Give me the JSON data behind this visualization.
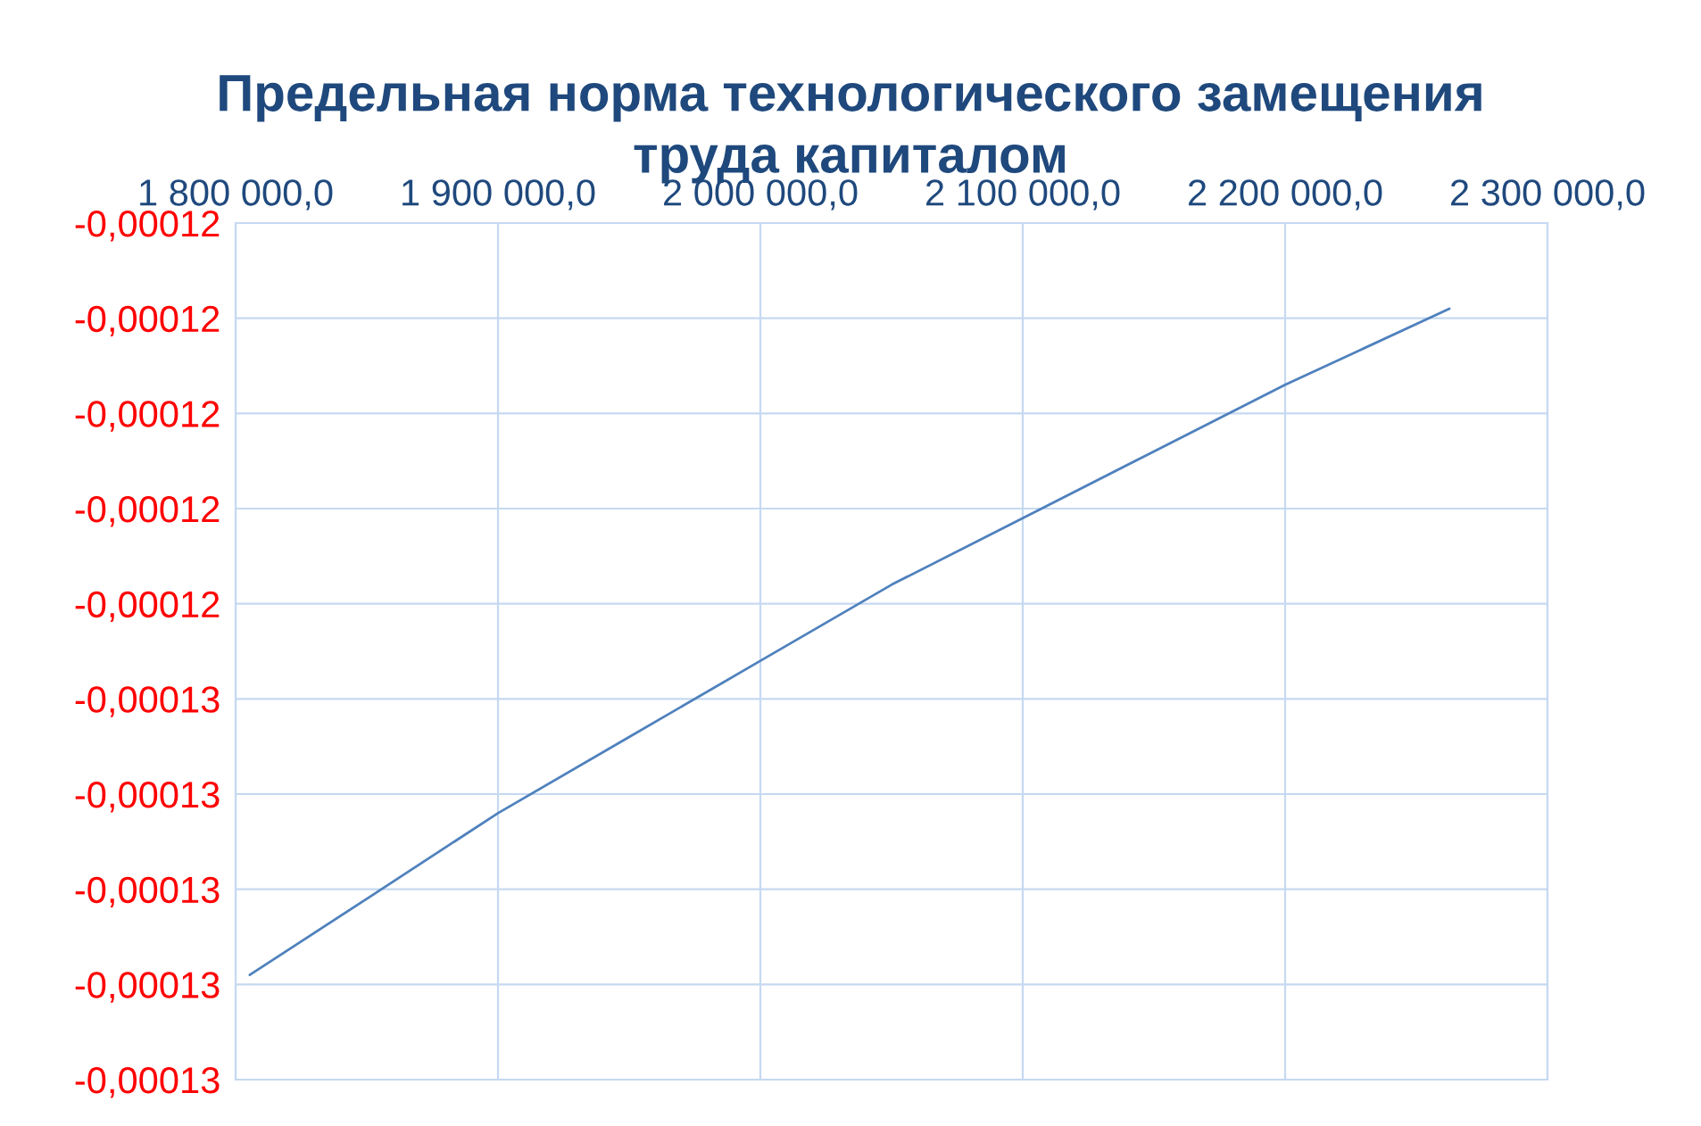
{
  "chart_data": {
    "type": "line",
    "title": "Предельная норма технологического замещения\nтруда капиталом",
    "x": [
      1805400,
      1850000,
      1900000,
      1950000,
      2000000,
      2050000,
      2100000,
      2150000,
      2200000,
      2262600
    ],
    "series": [
      {
        "color": "#4f81bd",
        "values": [
          -0.0001279,
          -0.0001271,
          -0.0001262,
          -0.0001254,
          -0.0001246,
          -0.0001238,
          -0.0001231,
          -0.0001224,
          -0.0001217,
          -0.0001209
        ]
      }
    ],
    "xlim": [
      1800000,
      2300000
    ],
    "xticks": [
      {
        "value": 1800000,
        "label": "1 800 000,0"
      },
      {
        "value": 1900000,
        "label": "1 900 000,0"
      },
      {
        "value": 2000000,
        "label": "2 000 000,0"
      },
      {
        "value": 2100000,
        "label": "2 100 000,0"
      },
      {
        "value": 2200000,
        "label": "2 200 000,0"
      },
      {
        "value": 2300000,
        "label": "2 300 000,0"
      }
    ],
    "ylim": [
      -0.000129,
      -0.00012
    ],
    "yticks": [
      {
        "value": -0.00012,
        "label": "-0,00012"
      },
      {
        "value": -0.000121,
        "label": "-0,00012"
      },
      {
        "value": -0.000122,
        "label": "-0,00012"
      },
      {
        "value": -0.000123,
        "label": "-0,00012"
      },
      {
        "value": -0.000124,
        "label": "-0,00012"
      },
      {
        "value": -0.000125,
        "label": "-0,00013"
      },
      {
        "value": -0.000126,
        "label": "-0,00013"
      },
      {
        "value": -0.000127,
        "label": "-0,00013"
      },
      {
        "value": -0.000128,
        "label": "-0,00013"
      },
      {
        "value": -0.000129,
        "label": "-0,00013"
      }
    ],
    "grid": true,
    "legend": false,
    "marker": "none",
    "line_style": "solid"
  }
}
